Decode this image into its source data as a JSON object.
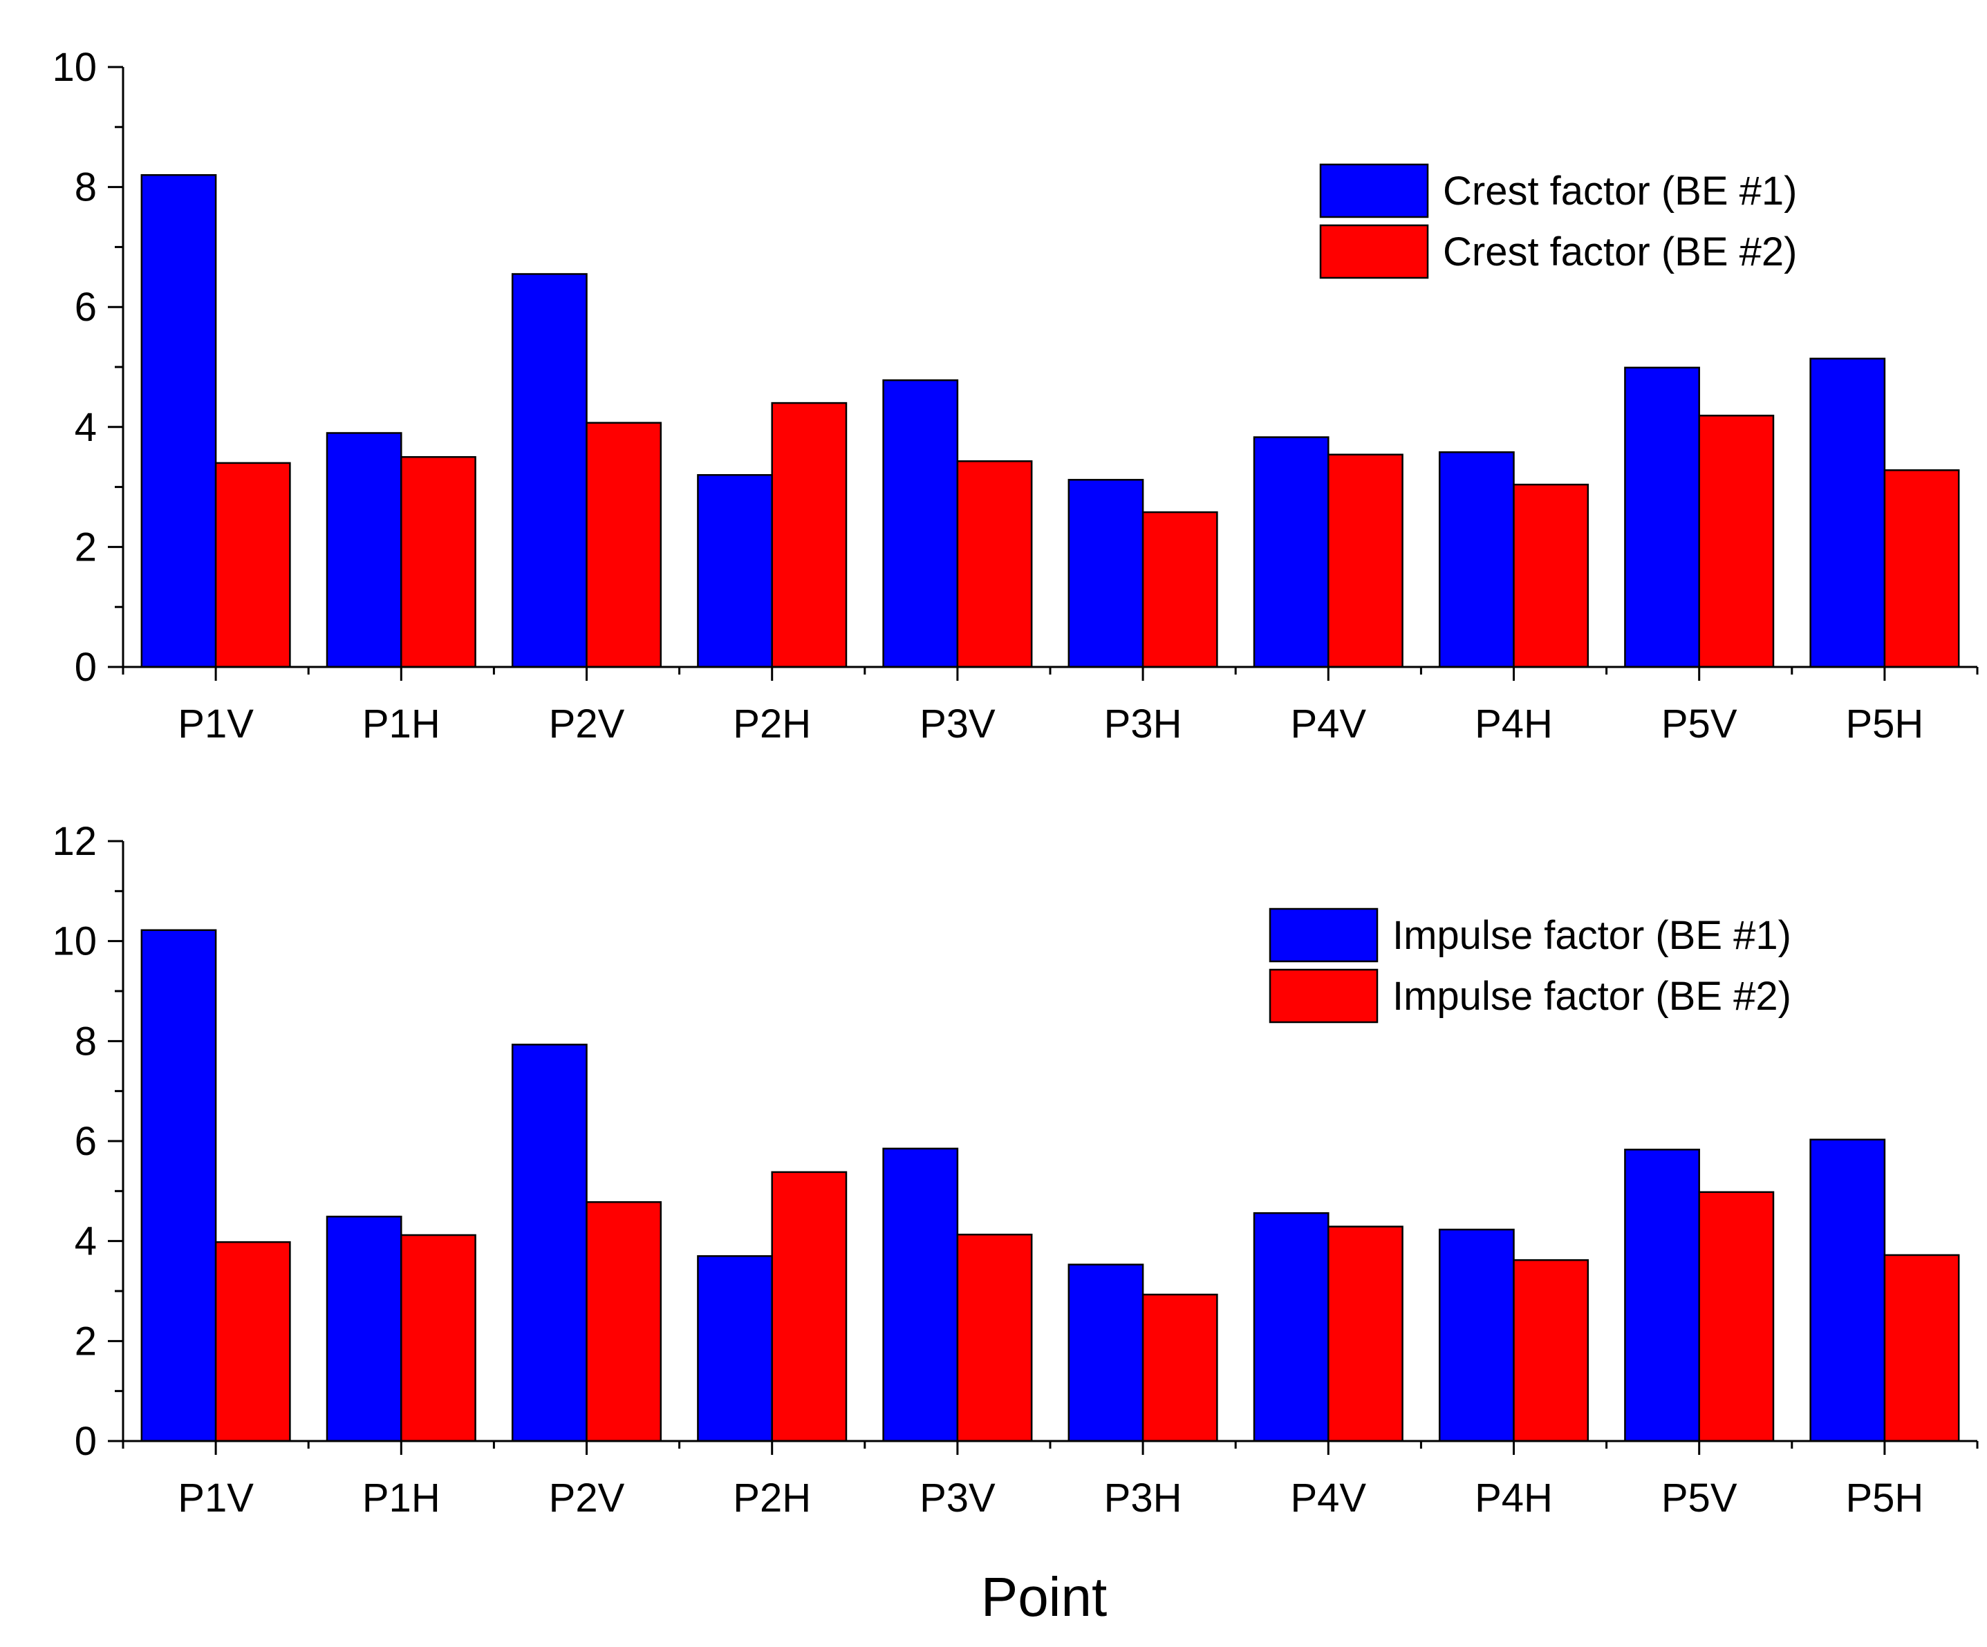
{
  "chart_data": [
    {
      "type": "bar",
      "title": "",
      "xlabel": "",
      "ylabel": "",
      "ylim": [
        0,
        10
      ],
      "yticks": [
        "0",
        "2",
        "4",
        "6",
        "8",
        "10"
      ],
      "legend_position": "top-right",
      "categories": [
        "P1V",
        "P1H",
        "P2V",
        "P2H",
        "P3V",
        "P3H",
        "P4V",
        "P4H",
        "P5V",
        "P5H"
      ],
      "series": [
        {
          "name": "Crest factor (BE #1)",
          "color": "#0000ff",
          "values": [
            8.2,
            3.9,
            6.55,
            3.2,
            4.78,
            3.12,
            3.83,
            3.58,
            4.99,
            5.14
          ]
        },
        {
          "name": "Crest factor (BE #2)",
          "color": "#ff0000",
          "values": [
            3.4,
            3.5,
            4.07,
            4.4,
            3.43,
            2.58,
            3.54,
            3.04,
            4.19,
            3.28
          ]
        }
      ]
    },
    {
      "type": "bar",
      "title": "",
      "xlabel": "Point",
      "ylabel": "",
      "ylim": [
        0,
        12
      ],
      "yticks": [
        "0",
        "2",
        "4",
        "6",
        "8",
        "10",
        "12"
      ],
      "legend_position": "top-right",
      "categories": [
        "P1V",
        "P1H",
        "P2V",
        "P2H",
        "P3V",
        "P3H",
        "P4V",
        "P4H",
        "P5V",
        "P5H"
      ],
      "series": [
        {
          "name": "Impulse factor (BE #1)",
          "color": "#0000ff",
          "values": [
            10.22,
            4.49,
            7.93,
            3.7,
            5.85,
            3.53,
            4.56,
            4.23,
            5.83,
            6.03
          ]
        },
        {
          "name": "Impulse factor (BE #2)",
          "color": "#ff0000",
          "values": [
            3.98,
            4.12,
            4.78,
            5.38,
            4.13,
            2.93,
            4.29,
            3.62,
            4.98,
            3.72
          ]
        }
      ]
    }
  ]
}
